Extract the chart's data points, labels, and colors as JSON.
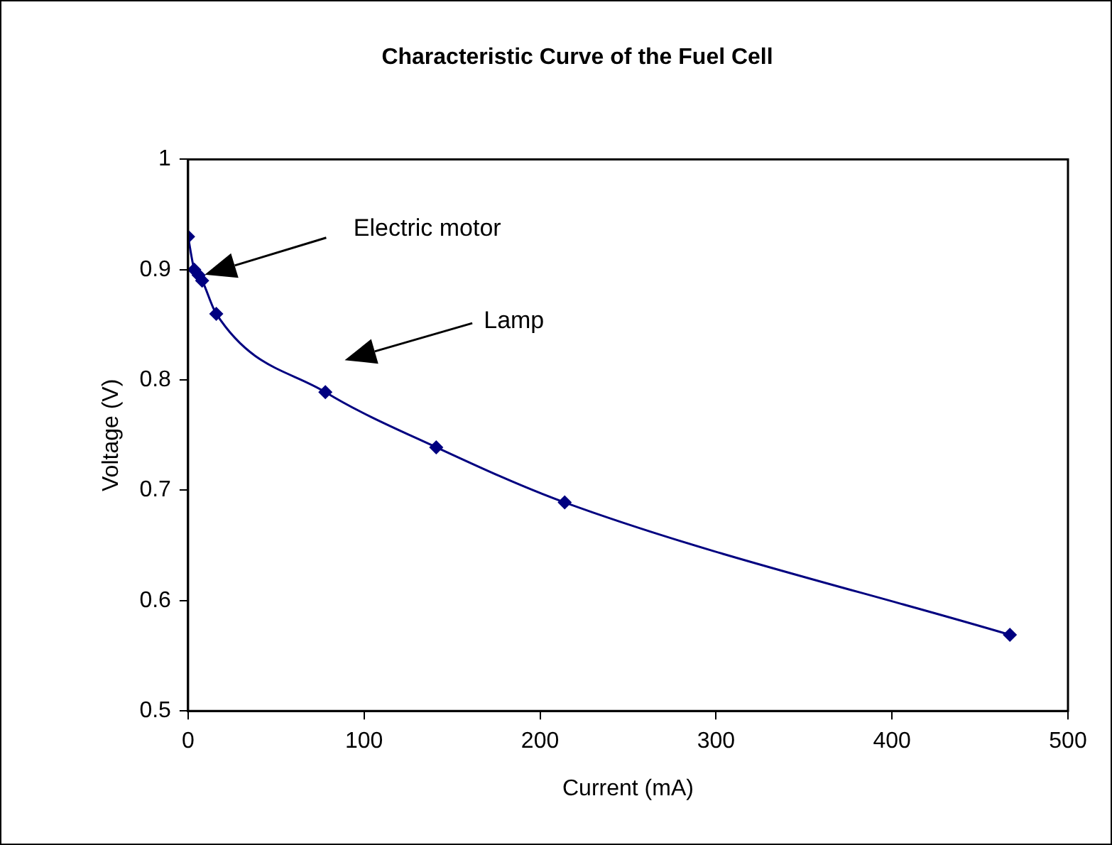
{
  "chart_data": {
    "type": "line",
    "title": "Characteristic Curve of the Fuel Cell",
    "xlabel": "Current (mA)",
    "ylabel": "Voltage (V)",
    "x": [
      0,
      3.5,
      6,
      8,
      16,
      78,
      141,
      214,
      467
    ],
    "series": [
      {
        "color": "#000080",
        "values": [
          0.93,
          0.9,
          0.895,
          0.89,
          0.86,
          0.789,
          0.739,
          0.689,
          0.569
        ]
      }
    ],
    "xlim": [
      0,
      500
    ],
    "xticks": [
      0,
      100,
      200,
      300,
      400,
      500
    ],
    "ylim": [
      0.5,
      1
    ],
    "yticks": [
      0.5,
      0.6,
      0.7,
      0.8,
      0.9,
      1
    ],
    "annotations": [
      "Electric motor",
      "Lamp"
    ],
    "grid": false,
    "legend": false,
    "marker": "diamond",
    "line_style": "solid"
  }
}
